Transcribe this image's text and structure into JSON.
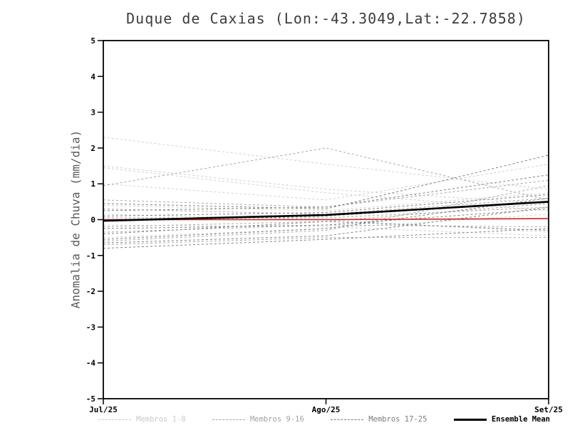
{
  "chart_data": {
    "type": "line",
    "title": "Duque de Caxias (Lon:-43.3049,Lat:-22.7858)",
    "ylabel": "Anomalia de Chuva (mm/dia)",
    "xlabel": "",
    "x_tick_labels": [
      "Jul/25",
      "Ago/25",
      "Set/25"
    ],
    "y_ticks": [
      -5,
      -4,
      -3,
      -2,
      -1,
      0,
      1,
      2,
      3,
      4,
      5
    ],
    "ylim": [
      -5,
      5
    ],
    "grid": false,
    "legend_position": "bottom",
    "group_colors": {
      "1": "#d0d0d0",
      "2": "#a9a9a9",
      "3": "#818181"
    },
    "members": [
      {
        "name": "m01",
        "group": "1",
        "values": [
          2.3,
          1.55,
          0.85
        ]
      },
      {
        "name": "m02",
        "group": "1",
        "values": [
          1.5,
          0.85,
          0.45
        ]
      },
      {
        "name": "m03",
        "group": "1",
        "values": [
          1.45,
          0.75,
          0.25
        ]
      },
      {
        "name": "m04",
        "group": "1",
        "values": [
          1.0,
          0.55,
          1.55
        ]
      },
      {
        "name": "m05",
        "group": "1",
        "values": [
          0.4,
          0.25,
          0.75
        ]
      },
      {
        "name": "m06",
        "group": "1",
        "values": [
          0.15,
          0.0,
          -0.35
        ]
      },
      {
        "name": "m07",
        "group": "1",
        "values": [
          -0.15,
          -0.2,
          -0.45
        ]
      },
      {
        "name": "m08",
        "group": "1",
        "values": [
          -0.5,
          -0.25,
          0.15
        ]
      },
      {
        "name": "m09",
        "group": "2",
        "values": [
          0.95,
          2.0,
          0.55
        ]
      },
      {
        "name": "m10",
        "group": "2",
        "values": [
          0.55,
          0.35,
          1.1
        ]
      },
      {
        "name": "m11",
        "group": "2",
        "values": [
          0.3,
          0.15,
          0.6
        ]
      },
      {
        "name": "m12",
        "group": "2",
        "values": [
          0.05,
          0.05,
          0.35
        ]
      },
      {
        "name": "m13",
        "group": "2",
        "values": [
          -0.2,
          -0.05,
          0.45
        ]
      },
      {
        "name": "m14",
        "group": "2",
        "values": [
          -0.35,
          -0.15,
          -0.2
        ]
      },
      {
        "name": "m15",
        "group": "2",
        "values": [
          -0.6,
          -0.3,
          0.95
        ]
      },
      {
        "name": "m16",
        "group": "2",
        "values": [
          -0.7,
          -0.5,
          -0.5
        ]
      },
      {
        "name": "m17",
        "group": "3",
        "values": [
          0.45,
          0.3,
          1.8
        ]
      },
      {
        "name": "m18",
        "group": "3",
        "values": [
          0.25,
          0.35,
          1.25
        ]
      },
      {
        "name": "m19",
        "group": "3",
        "values": [
          0.1,
          0.2,
          0.7
        ]
      },
      {
        "name": "m20",
        "group": "3",
        "values": [
          -0.05,
          0.1,
          0.5
        ]
      },
      {
        "name": "m21",
        "group": "3",
        "values": [
          -0.25,
          -0.15,
          0.3
        ]
      },
      {
        "name": "m22",
        "group": "3",
        "values": [
          -0.4,
          -0.05,
          -0.3
        ]
      },
      {
        "name": "m23",
        "group": "3",
        "values": [
          -0.55,
          -0.25,
          0.6
        ]
      },
      {
        "name": "m24",
        "group": "3",
        "values": [
          -0.65,
          -0.45,
          0.35
        ]
      },
      {
        "name": "m25",
        "group": "3",
        "values": [
          -0.8,
          -0.55,
          -0.25
        ]
      }
    ],
    "reference_line": {
      "name": "zero-reference",
      "color": "#cc2222",
      "values": [
        0.0,
        0.0,
        0.03
      ]
    },
    "ensemble_mean": {
      "name": "Ensemble Mean",
      "color": "#000000",
      "values": [
        -0.03,
        0.13,
        0.5
      ]
    },
    "legend": [
      {
        "label": "Membros 1-8",
        "color": "#c9c9c9",
        "dash": true,
        "bold": false
      },
      {
        "label": "Membros 9-16",
        "color": "#a2a2a2",
        "dash": true,
        "bold": false
      },
      {
        "label": "Membros 17-25",
        "color": "#7b7b7b",
        "dash": true,
        "bold": false
      },
      {
        "label": "Ensemble Mean",
        "color": "#000000",
        "dash": false,
        "bold": true
      }
    ]
  }
}
